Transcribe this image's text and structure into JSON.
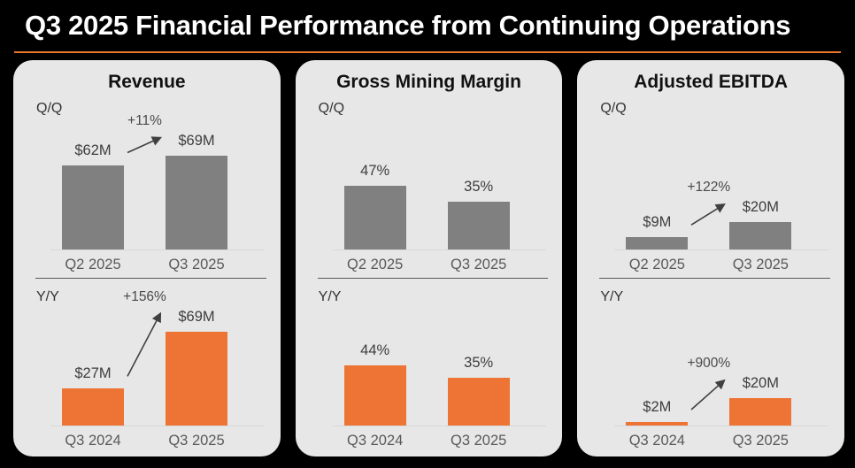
{
  "slide": {
    "title": "Q3 2025 Financial Performance from Continuing Operations"
  },
  "colors": {
    "background": "#000000",
    "panel_bg": "#e7e7e7",
    "accent": "#e8792b",
    "title_text": "#ffffff",
    "bar_gray": "#808080",
    "bar_orange": "#ed7434",
    "value_text": "#3d3d3d",
    "category_text": "#595959",
    "divider": "#595959",
    "baseline": "#d8d8d8",
    "arrow": "#404040"
  },
  "chart_data": [
    {
      "panel_title": "Revenue",
      "charts": [
        {
          "type": "bar",
          "section_label": "Q/Q",
          "categories": [
            "Q2 2025",
            "Q3 2025"
          ],
          "values": [
            62,
            69
          ],
          "value_labels": [
            "$62M",
            "$69M"
          ],
          "unit": "$M",
          "bar_color": "gray",
          "change_label": "+11%",
          "show_arrow": true
        },
        {
          "type": "bar",
          "section_label": "Y/Y",
          "categories": [
            "Q3 2024",
            "Q3 2025"
          ],
          "values": [
            27,
            69
          ],
          "value_labels": [
            "$27M",
            "$69M"
          ],
          "unit": "$M",
          "bar_color": "orange",
          "change_label": "+156%",
          "show_arrow": true
        }
      ]
    },
    {
      "panel_title": "Gross Mining Margin",
      "charts": [
        {
          "type": "bar",
          "section_label": "Q/Q",
          "categories": [
            "Q2 2025",
            "Q3 2025"
          ],
          "values": [
            47,
            35
          ],
          "value_labels": [
            "47%",
            "35%"
          ],
          "unit": "%",
          "bar_color": "gray",
          "change_label": null,
          "show_arrow": false
        },
        {
          "type": "bar",
          "section_label": "Y/Y",
          "categories": [
            "Q3 2024",
            "Q3 2025"
          ],
          "values": [
            44,
            35
          ],
          "value_labels": [
            "44%",
            "35%"
          ],
          "unit": "%",
          "bar_color": "orange",
          "change_label": null,
          "show_arrow": false
        }
      ]
    },
    {
      "panel_title": "Adjusted EBITDA",
      "charts": [
        {
          "type": "bar",
          "section_label": "Q/Q",
          "categories": [
            "Q2 2025",
            "Q3 2025"
          ],
          "values": [
            9,
            20
          ],
          "value_labels": [
            "$9M",
            "$20M"
          ],
          "unit": "$M",
          "bar_color": "gray",
          "change_label": "+122%",
          "show_arrow": true
        },
        {
          "type": "bar",
          "section_label": "Y/Y",
          "categories": [
            "Q3 2024",
            "Q3 2025"
          ],
          "values": [
            2,
            20
          ],
          "value_labels": [
            "$2M",
            "$20M"
          ],
          "unit": "$M",
          "bar_color": "orange",
          "change_label": "+900%",
          "show_arrow": true
        }
      ]
    }
  ]
}
